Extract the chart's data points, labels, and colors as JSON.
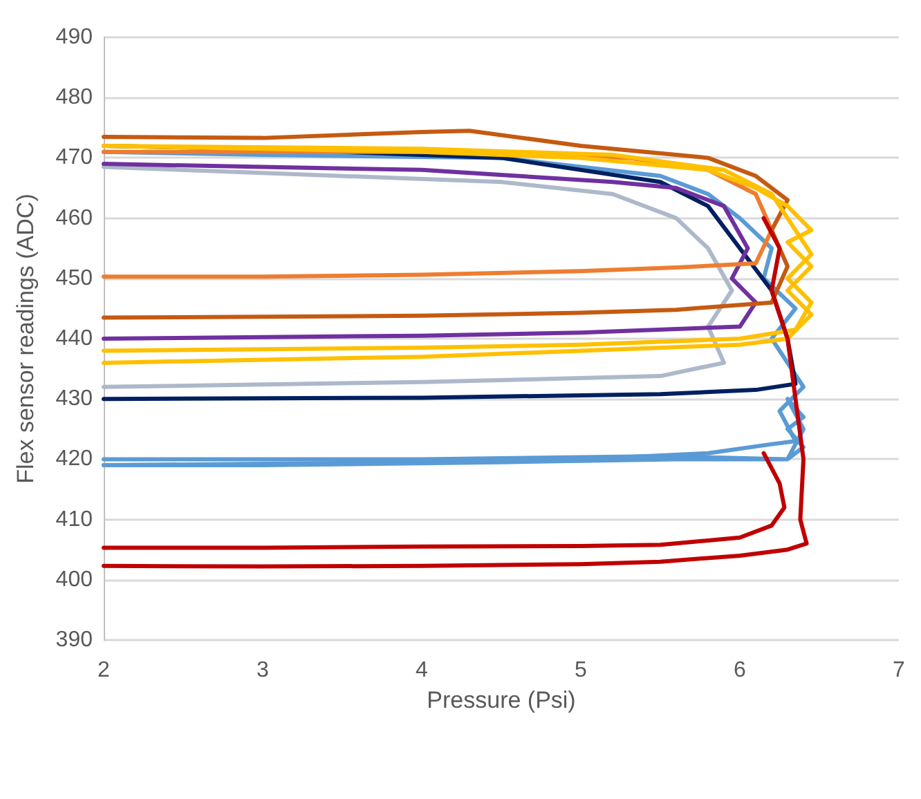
{
  "chart_data": {
    "type": "line",
    "xlabel": "Pressure (Psi)",
    "ylabel": "Flex sensor readings (ADC)",
    "xlim": [
      2,
      7
    ],
    "xticks": [
      2,
      3,
      4,
      5,
      6,
      7
    ],
    "ylim": [
      390,
      490
    ],
    "yticks": [
      390,
      400,
      410,
      420,
      430,
      440,
      450,
      460,
      470,
      480,
      490
    ],
    "grid": "y",
    "marker": "none",
    "line_style": "solid",
    "series": [
      {
        "color": "#5b9bd5",
        "x": [
          2,
          4,
          5,
          5.8,
          6.2,
          6.35,
          6.25,
          6.4,
          6.2,
          6.35,
          6.15,
          6.2,
          6.0,
          5.8,
          5.5,
          4.5,
          3,
          2
        ],
        "values": [
          419,
          419.5,
          420,
          421,
          422.5,
          423,
          428,
          432,
          440,
          445,
          450,
          455,
          460,
          464,
          467,
          470,
          470.5,
          471
        ]
      },
      {
        "color": "#5b9bd5",
        "x": [
          2,
          4,
          5.5,
          6.3,
          6.4,
          6.3,
          6.4,
          6.3,
          6.4,
          6.3,
          5.6,
          4.5,
          3,
          2
        ],
        "values": [
          420,
          420,
          420.5,
          420,
          422,
          425,
          427,
          430,
          425,
          420,
          420,
          419.5,
          419,
          419
        ]
      },
      {
        "color": "#002060",
        "x": [
          2,
          4,
          5.5,
          6.1,
          6.35,
          6.3,
          6.2,
          6.0,
          5.8,
          5.5,
          4.5,
          3,
          2
        ],
        "values": [
          430,
          430.2,
          430.8,
          431.5,
          432.5,
          440,
          448,
          455,
          462,
          466,
          470,
          471.5,
          472
        ]
      },
      {
        "color": "#adb9ca",
        "x": [
          2,
          4,
          5.5,
          5.9,
          5.8,
          5.95,
          5.8,
          5.6,
          5.2,
          4.5,
          3,
          2
        ],
        "values": [
          432,
          432.8,
          433.8,
          436,
          442,
          448,
          455,
          460,
          464,
          466,
          467.5,
          468.5
        ]
      },
      {
        "color": "#7030a0",
        "x": [
          2,
          4,
          5,
          6.0,
          6.1,
          5.95,
          6.05,
          5.9,
          5.6,
          5.2,
          4,
          3,
          2
        ],
        "values": [
          440,
          440.5,
          441,
          442,
          446,
          450,
          455,
          462,
          465,
          466,
          468,
          468.5,
          469
        ]
      },
      {
        "color": "#ed7d31",
        "x": [
          2,
          3,
          4,
          5,
          5.6,
          6.1,
          6.2,
          6.1,
          5.8,
          5.3,
          4,
          3,
          2
        ],
        "values": [
          450.3,
          450.3,
          450.6,
          451.2,
          451.8,
          452.5,
          458,
          464,
          468,
          470,
          471,
          471,
          471
        ]
      },
      {
        "color": "#c55a11",
        "x": [
          2,
          4,
          5,
          5.6,
          6.2,
          6.3,
          6.2,
          6.3,
          6.1,
          5.8,
          5,
          4.3,
          4,
          3,
          2
        ],
        "values": [
          443.5,
          443.8,
          444.3,
          444.8,
          446,
          452,
          458,
          463,
          467,
          470,
          472,
          474.5,
          474.3,
          473.3,
          473.5
        ]
      },
      {
        "color": "#ffc000",
        "x": [
          2,
          4,
          5,
          6,
          6.3,
          6.45,
          6.3,
          6.45,
          6.3,
          6.45,
          6.3,
          6.1,
          5.8,
          5,
          4,
          3,
          2
        ],
        "values": [
          436,
          437,
          438,
          439,
          440,
          444,
          448,
          452,
          456,
          458,
          462,
          465,
          468,
          470,
          471,
          471.5,
          472
        ]
      },
      {
        "color": "#ffc000",
        "x": [
          2,
          4,
          5,
          6,
          6.35,
          6.45,
          6.3,
          6.45,
          6.3,
          6.2,
          5.9,
          5.2,
          4,
          2
        ],
        "values": [
          438,
          438.5,
          439,
          440,
          441.5,
          446,
          450,
          454,
          460,
          464,
          468,
          470.5,
          471.5,
          472
        ]
      },
      {
        "color": "#c00000",
        "x": [
          2,
          3,
          4,
          5,
          5.5,
          6,
          6.3,
          6.42,
          6.38,
          6.4,
          6.35,
          6.3,
          6.2,
          6.25,
          6.15
        ],
        "values": [
          402.3,
          402.2,
          402.3,
          402.6,
          403,
          404,
          405,
          406,
          410,
          420,
          430,
          440,
          448,
          455,
          460
        ]
      },
      {
        "color": "#c00000",
        "x": [
          6.15,
          6.25,
          6.28,
          6.2,
          6,
          5.5,
          5,
          4,
          3,
          2
        ],
        "values": [
          421,
          416,
          412,
          409,
          407,
          405.8,
          405.6,
          405.5,
          405.3,
          405.3
        ]
      }
    ]
  }
}
